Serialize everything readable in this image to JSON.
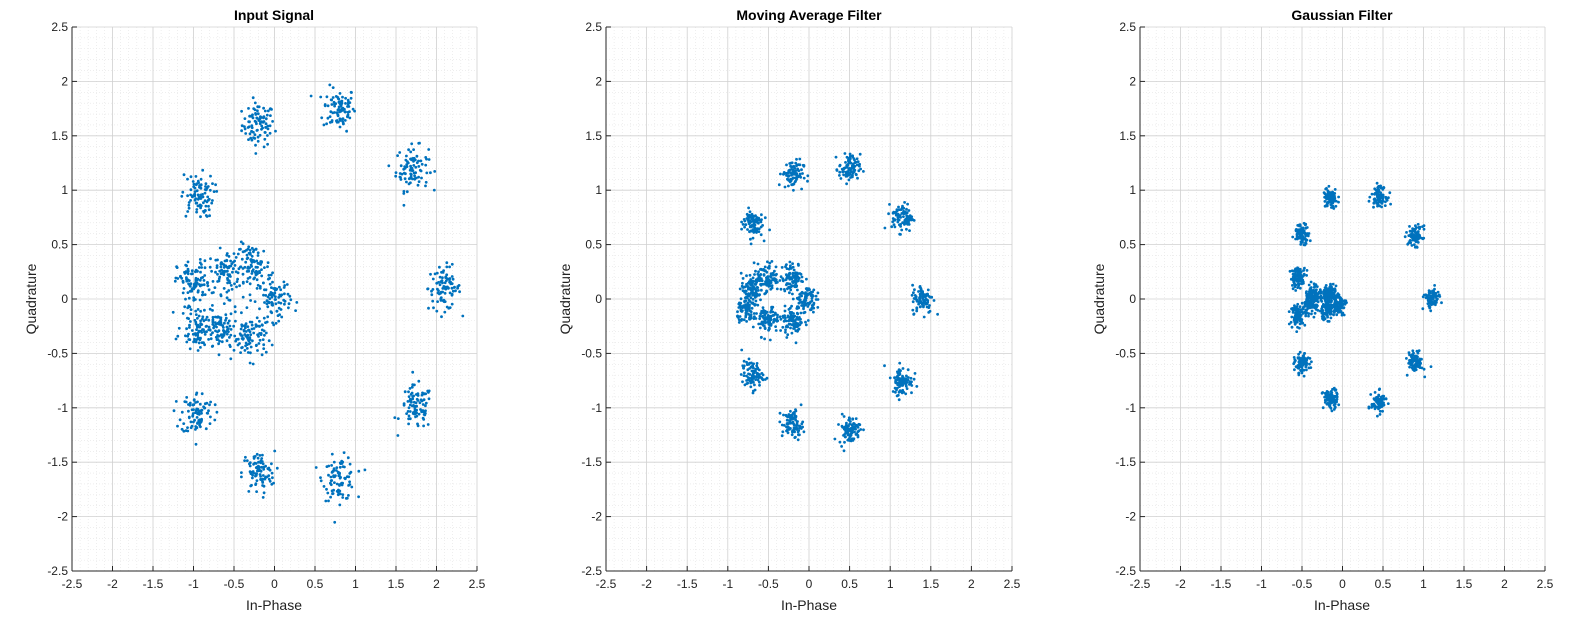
{
  "style": {
    "marker_color": "#0072BD",
    "grid_color": "#d0d0d0",
    "minor_grid_color": "#e3e3e3",
    "axis_color": "#262626"
  },
  "chart_data": [
    {
      "type": "scatter",
      "title": "Input Signal",
      "xlabel": "In-Phase",
      "ylabel": "Quadrature",
      "xlim": [
        -2.5,
        2.5
      ],
      "ylim": [
        -2.5,
        2.5
      ],
      "xticks": [
        "-2.5",
        "-2",
        "-1.5",
        "-1",
        "-0.5",
        "0",
        "0.5",
        "1",
        "1.5",
        "2",
        "2.5"
      ],
      "yticks": [
        "-2.5",
        "-2",
        "-1.5",
        "-1",
        "-0.5",
        "0",
        "0.5",
        "1",
        "1.5",
        "2",
        "2.5"
      ],
      "grid": "on (major and minor)",
      "cluster_spread": 0.1,
      "cluster_centers": [
        [
          -0.2,
          1.6
        ],
        [
          0.8,
          1.75
        ],
        [
          1.7,
          1.2
        ],
        [
          2.1,
          0.1
        ],
        [
          1.75,
          -1.0
        ],
        [
          0.8,
          -1.65
        ],
        [
          -0.2,
          -1.6
        ],
        [
          -0.95,
          -1.05
        ],
        [
          -0.95,
          0.95
        ],
        [
          -1.0,
          0.15
        ],
        [
          -0.6,
          0.25
        ],
        [
          -0.25,
          0.3
        ],
        [
          0.0,
          0.0
        ],
        [
          -0.3,
          -0.35
        ],
        [
          -0.65,
          -0.3
        ],
        [
          -0.95,
          -0.25
        ]
      ]
    },
    {
      "type": "scatter",
      "title": "Moving Average Filter",
      "xlabel": "In-Phase",
      "ylabel": "Quadrature",
      "xlim": [
        -2.5,
        2.5
      ],
      "ylim": [
        -2.5,
        2.5
      ],
      "xticks": [
        "-2.5",
        "-2",
        "-1.5",
        "-1",
        "-0.5",
        "0",
        "0.5",
        "1",
        "1.5",
        "2",
        "2.5"
      ],
      "yticks": [
        "-2.5",
        "-2",
        "-1.5",
        "-1",
        "-0.5",
        "0",
        "0.5",
        "1",
        "1.5",
        "2",
        "2.5"
      ],
      "grid": "on (major and minor)",
      "cluster_spread": 0.065,
      "cluster_centers": [
        [
          -0.2,
          1.15
        ],
        [
          0.5,
          1.2
        ],
        [
          1.15,
          0.75
        ],
        [
          1.4,
          0.0
        ],
        [
          1.15,
          -0.75
        ],
        [
          0.5,
          -1.2
        ],
        [
          -0.2,
          -1.15
        ],
        [
          -0.7,
          -0.7
        ],
        [
          -0.7,
          0.7
        ],
        [
          -0.7,
          0.1
        ],
        [
          -0.5,
          0.2
        ],
        [
          -0.2,
          0.2
        ],
        [
          -0.05,
          0.0
        ],
        [
          -0.2,
          -0.2
        ],
        [
          -0.5,
          -0.2
        ],
        [
          -0.75,
          -0.1
        ]
      ]
    },
    {
      "type": "scatter",
      "title": "Gaussian Filter",
      "xlabel": "In-Phase",
      "ylabel": "Quadrature",
      "xlim": [
        -2.5,
        2.5
      ],
      "ylim": [
        -2.5,
        2.5
      ],
      "xticks": [
        "-2.5",
        "-2",
        "-1.5",
        "-1",
        "-0.5",
        "0",
        "0.5",
        "1",
        "1.5",
        "2",
        "2.5"
      ],
      "yticks": [
        "-2.5",
        "-2",
        "-1.5",
        "-1",
        "-0.5",
        "0",
        "0.5",
        "1",
        "1.5",
        "2",
        "2.5"
      ],
      "grid": "on (major and minor)",
      "cluster_spread": 0.045,
      "cluster_centers": [
        [
          -0.15,
          0.92
        ],
        [
          0.45,
          0.95
        ],
        [
          0.9,
          0.58
        ],
        [
          1.1,
          0.0
        ],
        [
          0.9,
          -0.58
        ],
        [
          0.45,
          -0.95
        ],
        [
          -0.15,
          -0.92
        ],
        [
          -0.5,
          -0.6
        ],
        [
          -0.5,
          0.6
        ],
        [
          -0.55,
          0.2
        ],
        [
          -0.35,
          0.05
        ],
        [
          -0.15,
          0.05
        ],
        [
          -0.05,
          -0.05
        ],
        [
          -0.2,
          -0.1
        ],
        [
          -0.4,
          -0.05
        ],
        [
          -0.55,
          -0.15
        ]
      ]
    }
  ]
}
